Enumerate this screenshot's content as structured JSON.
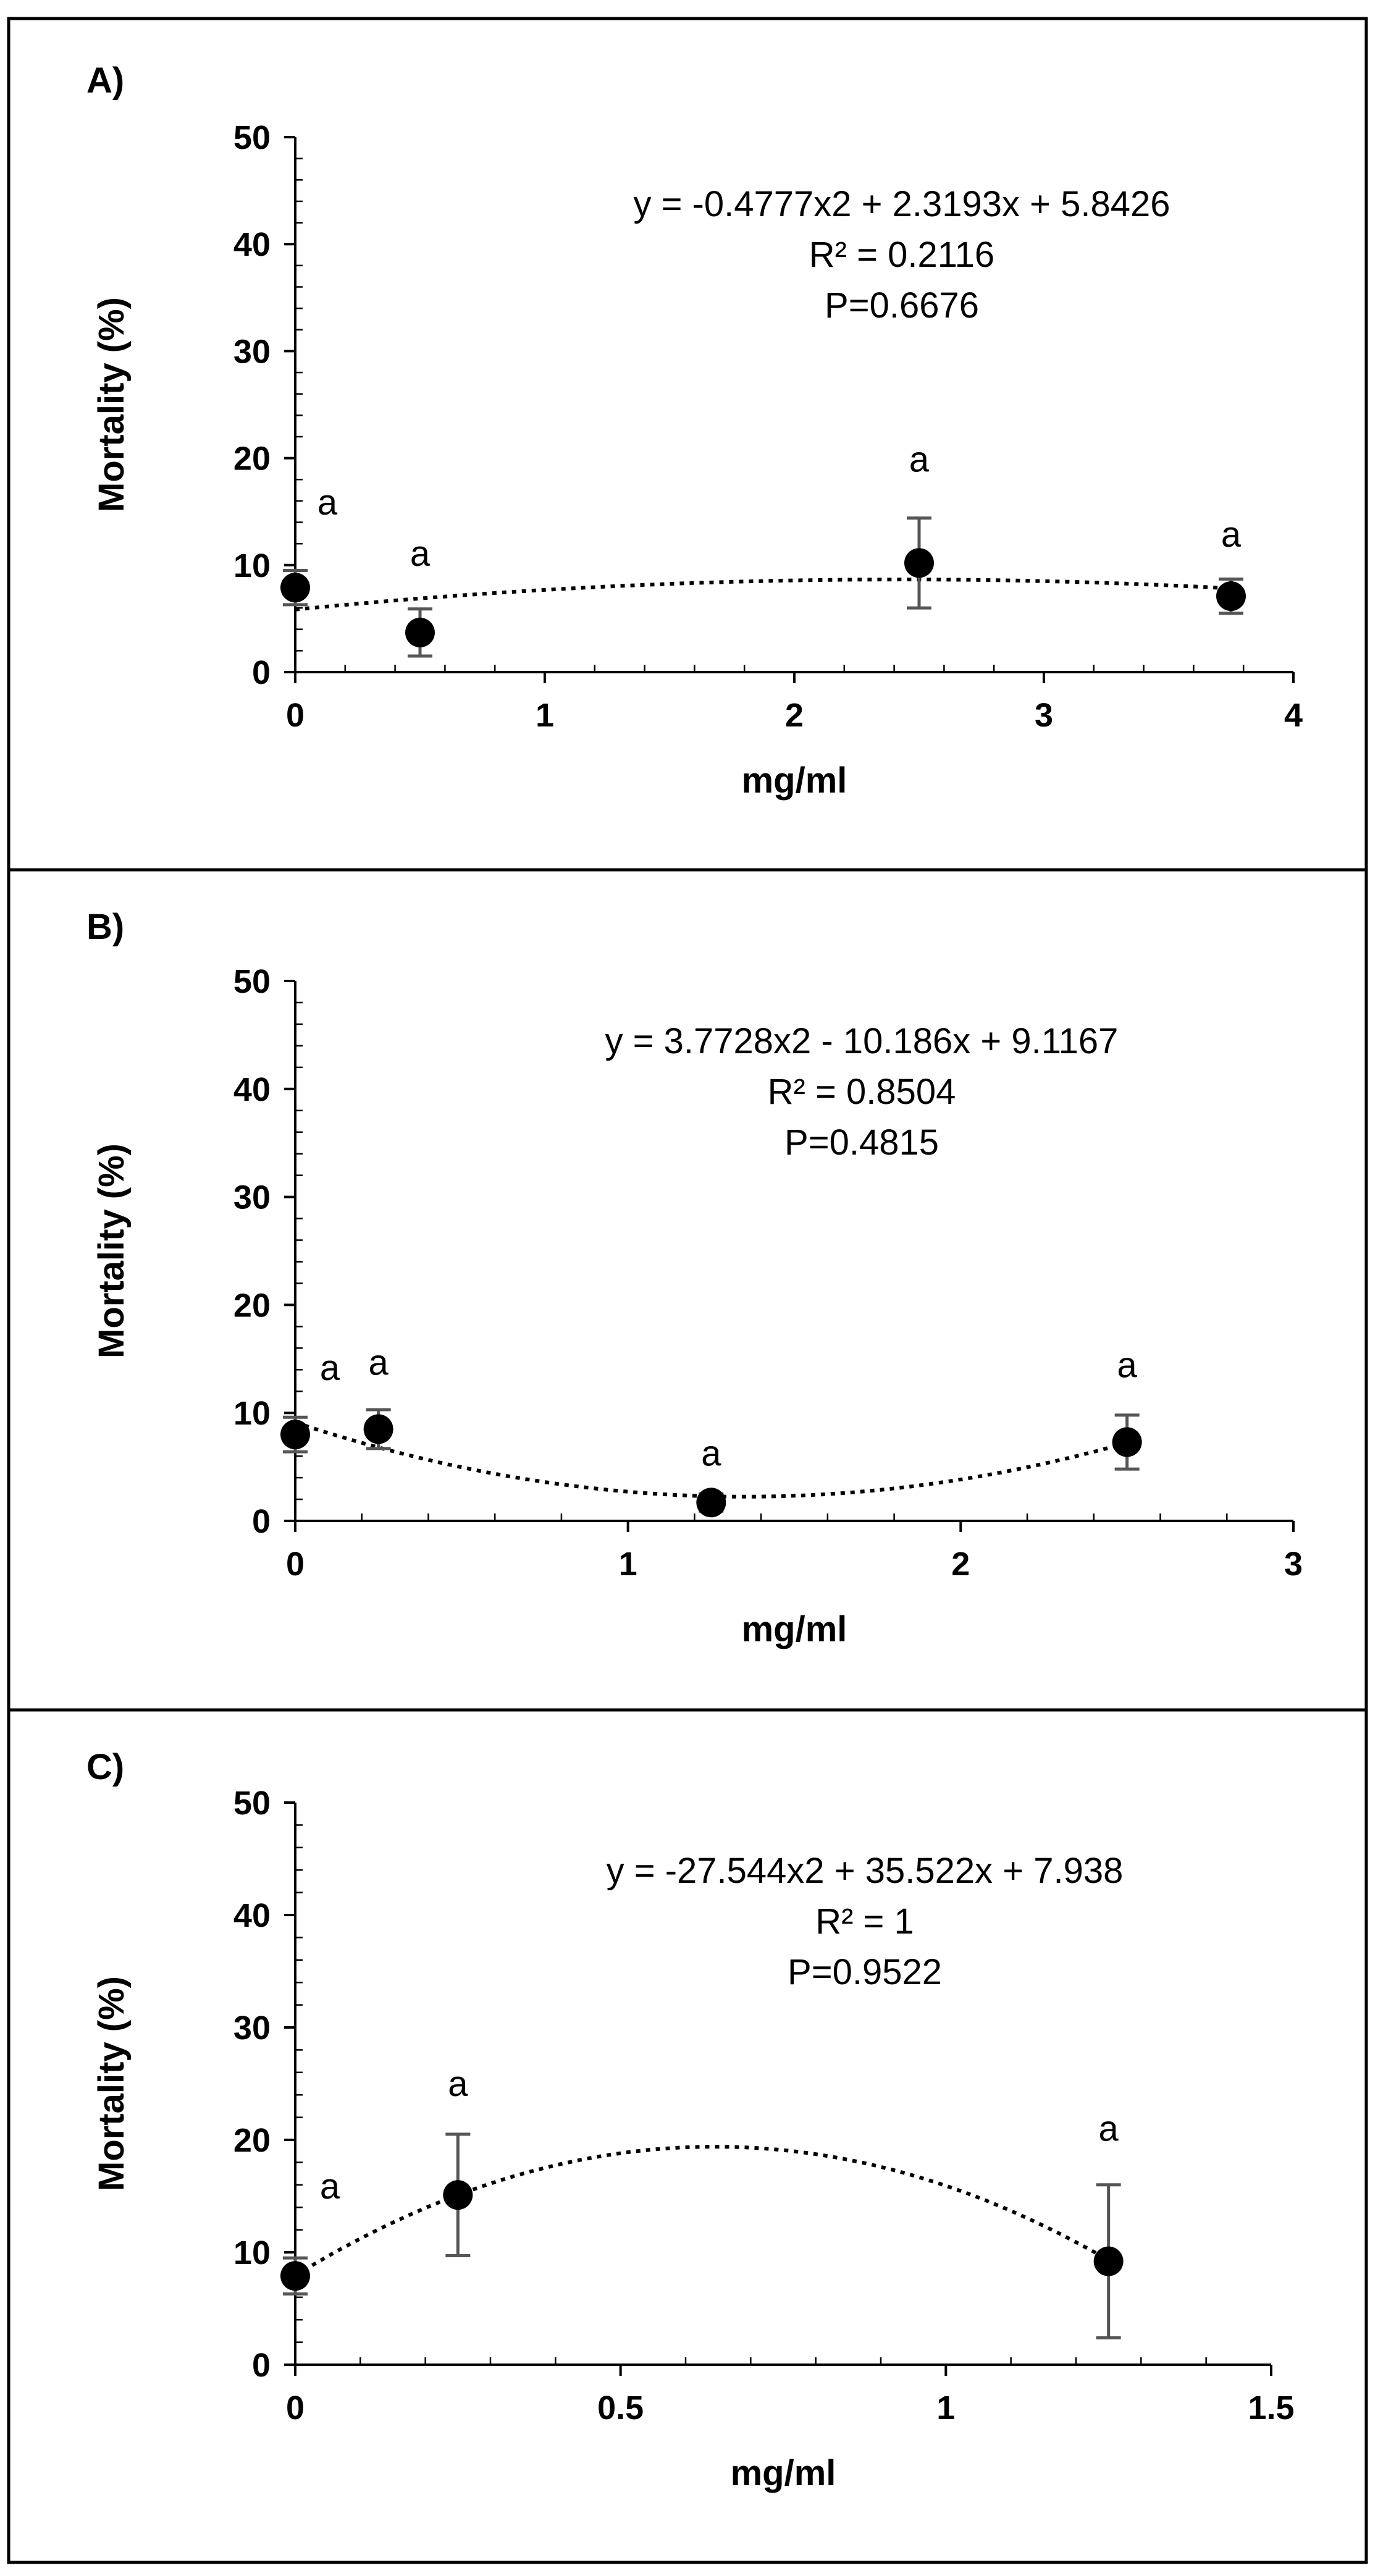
{
  "chart_data": [
    {
      "type": "scatter",
      "panel_label": "A)",
      "xlabel": "mg/ml",
      "ylabel": "Mortality (%)",
      "xlim": [
        0,
        4
      ],
      "ylim": [
        0,
        50
      ],
      "xticks": [
        0,
        1,
        2,
        3,
        4
      ],
      "xtick_labels": [
        "0",
        "1",
        "2",
        "3",
        "4"
      ],
      "yticks": [
        0,
        10,
        20,
        30,
        40,
        50
      ],
      "ytick_labels": [
        "0",
        "10",
        "20",
        "30",
        "40",
        "50"
      ],
      "points": [
        {
          "x": 0,
          "y": 7.9,
          "err": 1.6,
          "letter": "a"
        },
        {
          "x": 0.5,
          "y": 3.7,
          "err": 2.2,
          "letter": "a"
        },
        {
          "x": 2.5,
          "y": 10.2,
          "err": 4.2,
          "letter": "a"
        },
        {
          "x": 3.75,
          "y": 7.1,
          "err": 1.6,
          "letter": "a"
        }
      ],
      "trendline": {
        "type": "polynomial",
        "a": -0.4777,
        "b": 2.3193,
        "c": 5.8426
      },
      "annotation": {
        "equation": "y = -0.4777x2 + 2.3193x + 5.8426",
        "r2": "R² = 0.2116",
        "p": "P=0.6676"
      }
    },
    {
      "type": "scatter",
      "panel_label": "B)",
      "xlabel": "mg/ml",
      "ylabel": "Mortality (%)",
      "xlim": [
        0,
        3
      ],
      "ylim": [
        0,
        50
      ],
      "xticks": [
        0,
        1,
        2,
        3
      ],
      "xtick_labels": [
        "0",
        "1",
        "2",
        "3"
      ],
      "yticks": [
        0,
        10,
        20,
        30,
        40,
        50
      ],
      "ytick_labels": [
        "0",
        "10",
        "20",
        "30",
        "40",
        "50"
      ],
      "points": [
        {
          "x": 0,
          "y": 8.0,
          "err": 1.6,
          "letter": "a"
        },
        {
          "x": 0.25,
          "y": 8.5,
          "err": 1.8,
          "letter": "a"
        },
        {
          "x": 1.25,
          "y": 1.7,
          "err": 0.8,
          "letter": "a"
        },
        {
          "x": 2.5,
          "y": 7.3,
          "err": 2.5,
          "letter": "a"
        }
      ],
      "trendline": {
        "type": "polynomial",
        "a": 3.7728,
        "b": -10.186,
        "c": 9.1167
      },
      "annotation": {
        "equation": "y = 3.7728x2 - 10.186x + 9.1167",
        "r2": "R² = 0.8504",
        "p": "P=0.4815"
      }
    },
    {
      "type": "scatter",
      "panel_label": "C)",
      "xlabel": "mg/ml",
      "ylabel": "Mortality (%)",
      "xlim": [
        0,
        1.5
      ],
      "ylim": [
        0,
        50
      ],
      "xticks": [
        0,
        0.5,
        1,
        1.5
      ],
      "xtick_labels": [
        "0",
        "0.5",
        "1",
        "1.5"
      ],
      "yticks": [
        0,
        10,
        20,
        30,
        40,
        50
      ],
      "ytick_labels": [
        "0",
        "10",
        "20",
        "30",
        "40",
        "50"
      ],
      "points": [
        {
          "x": 0,
          "y": 7.9,
          "err": 1.6,
          "letter": "a"
        },
        {
          "x": 0.25,
          "y": 15.1,
          "err": 5.4,
          "letter": "a"
        },
        {
          "x": 1.25,
          "y": 9.2,
          "err": 6.8,
          "letter": "a"
        }
      ],
      "trendline": {
        "type": "polynomial",
        "a": -27.544,
        "b": 35.522,
        "c": 7.938
      },
      "annotation": {
        "equation": "y = -27.544x2 + 35.522x + 7.938",
        "r2": "R² = 1",
        "p": "P=0.9522"
      }
    }
  ]
}
